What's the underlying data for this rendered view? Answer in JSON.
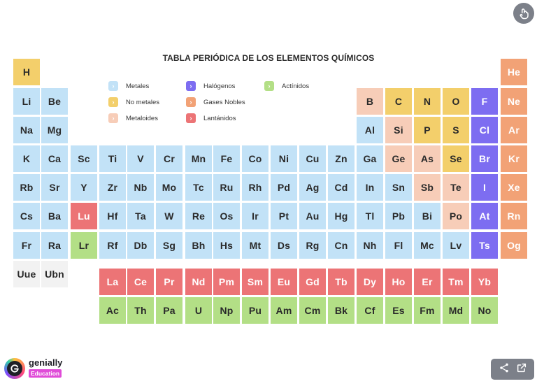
{
  "title": "TABLA PERIÓDICA DE LOS ELEMENTOS QUÍMICOS",
  "colors": {
    "Metales": "#c2e2f7",
    "No metales": "#f3cf6b",
    "Metaloides": "#f7cdb8",
    "Halógenos": "#7d6df1",
    "Gases Nobles": "#f2a276",
    "Lantánidos": "#ec7476",
    "Actínidos": "#b3df86",
    "unknown": "#f2f2f2"
  },
  "legend": [
    {
      "label": "Metales",
      "key": "Metales",
      "marker": "›"
    },
    {
      "label": "No metales",
      "key": "No metales",
      "marker": "›"
    },
    {
      "label": "Metaloides",
      "key": "Metaloides",
      "marker": "›"
    },
    {
      "label": "Halógenos",
      "key": "Halógenos",
      "marker": "›"
    },
    {
      "label": "Gases Nobles",
      "key": "Gases Nobles",
      "marker": "›"
    },
    {
      "label": "Lantánidos",
      "key": "Lantánidos",
      "marker": "›"
    },
    {
      "label": "Actínidos",
      "key": "Actínidos",
      "marker": "›"
    }
  ],
  "elements": [
    {
      "s": "H",
      "row": 1,
      "col": 1,
      "cat": "No metales"
    },
    {
      "s": "He",
      "row": 1,
      "col": 18,
      "cat": "Gases Nobles"
    },
    {
      "s": "Li",
      "row": 2,
      "col": 1,
      "cat": "Metales"
    },
    {
      "s": "Be",
      "row": 2,
      "col": 2,
      "cat": "Metales"
    },
    {
      "s": "B",
      "row": 2,
      "col": 13,
      "cat": "Metaloides"
    },
    {
      "s": "C",
      "row": 2,
      "col": 14,
      "cat": "No metales"
    },
    {
      "s": "N",
      "row": 2,
      "col": 15,
      "cat": "No metales"
    },
    {
      "s": "O",
      "row": 2,
      "col": 16,
      "cat": "No metales"
    },
    {
      "s": "F",
      "row": 2,
      "col": 17,
      "cat": "Halógenos"
    },
    {
      "s": "Ne",
      "row": 2,
      "col": 18,
      "cat": "Gases Nobles"
    },
    {
      "s": "Na",
      "row": 3,
      "col": 1,
      "cat": "Metales"
    },
    {
      "s": "Mg",
      "row": 3,
      "col": 2,
      "cat": "Metales"
    },
    {
      "s": "Al",
      "row": 3,
      "col": 13,
      "cat": "Metales"
    },
    {
      "s": "Si",
      "row": 3,
      "col": 14,
      "cat": "Metaloides"
    },
    {
      "s": "P",
      "row": 3,
      "col": 15,
      "cat": "No metales"
    },
    {
      "s": "S",
      "row": 3,
      "col": 16,
      "cat": "No metales"
    },
    {
      "s": "Cl",
      "row": 3,
      "col": 17,
      "cat": "Halógenos"
    },
    {
      "s": "Ar",
      "row": 3,
      "col": 18,
      "cat": "Gases Nobles"
    },
    {
      "s": "K",
      "row": 4,
      "col": 1,
      "cat": "Metales"
    },
    {
      "s": "Ca",
      "row": 4,
      "col": 2,
      "cat": "Metales"
    },
    {
      "s": "Sc",
      "row": 4,
      "col": 3,
      "cat": "Metales"
    },
    {
      "s": "Ti",
      "row": 4,
      "col": 4,
      "cat": "Metales"
    },
    {
      "s": "V",
      "row": 4,
      "col": 5,
      "cat": "Metales"
    },
    {
      "s": "Cr",
      "row": 4,
      "col": 6,
      "cat": "Metales"
    },
    {
      "s": "Mn",
      "row": 4,
      "col": 7,
      "cat": "Metales"
    },
    {
      "s": "Fe",
      "row": 4,
      "col": 8,
      "cat": "Metales"
    },
    {
      "s": "Co",
      "row": 4,
      "col": 9,
      "cat": "Metales"
    },
    {
      "s": "Ni",
      "row": 4,
      "col": 10,
      "cat": "Metales"
    },
    {
      "s": "Cu",
      "row": 4,
      "col": 11,
      "cat": "Metales"
    },
    {
      "s": "Zn",
      "row": 4,
      "col": 12,
      "cat": "Metales"
    },
    {
      "s": "Ga",
      "row": 4,
      "col": 13,
      "cat": "Metales"
    },
    {
      "s": "Ge",
      "row": 4,
      "col": 14,
      "cat": "Metaloides"
    },
    {
      "s": "As",
      "row": 4,
      "col": 15,
      "cat": "Metaloides"
    },
    {
      "s": "Se",
      "row": 4,
      "col": 16,
      "cat": "No metales"
    },
    {
      "s": "Br",
      "row": 4,
      "col": 17,
      "cat": "Halógenos"
    },
    {
      "s": "Kr",
      "row": 4,
      "col": 18,
      "cat": "Gases Nobles"
    },
    {
      "s": "Rb",
      "row": 5,
      "col": 1,
      "cat": "Metales"
    },
    {
      "s": "Sr",
      "row": 5,
      "col": 2,
      "cat": "Metales"
    },
    {
      "s": "Y",
      "row": 5,
      "col": 3,
      "cat": "Metales"
    },
    {
      "s": "Zr",
      "row": 5,
      "col": 4,
      "cat": "Metales"
    },
    {
      "s": "Nb",
      "row": 5,
      "col": 5,
      "cat": "Metales"
    },
    {
      "s": "Mo",
      "row": 5,
      "col": 6,
      "cat": "Metales"
    },
    {
      "s": "Tc",
      "row": 5,
      "col": 7,
      "cat": "Metales"
    },
    {
      "s": "Ru",
      "row": 5,
      "col": 8,
      "cat": "Metales"
    },
    {
      "s": "Rh",
      "row": 5,
      "col": 9,
      "cat": "Metales"
    },
    {
      "s": "Pd",
      "row": 5,
      "col": 10,
      "cat": "Metales"
    },
    {
      "s": "Ag",
      "row": 5,
      "col": 11,
      "cat": "Metales"
    },
    {
      "s": "Cd",
      "row": 5,
      "col": 12,
      "cat": "Metales"
    },
    {
      "s": "In",
      "row": 5,
      "col": 13,
      "cat": "Metales"
    },
    {
      "s": "Sn",
      "row": 5,
      "col": 14,
      "cat": "Metales"
    },
    {
      "s": "Sb",
      "row": 5,
      "col": 15,
      "cat": "Metaloides"
    },
    {
      "s": "Te",
      "row": 5,
      "col": 16,
      "cat": "Metaloides"
    },
    {
      "s": "I",
      "row": 5,
      "col": 17,
      "cat": "Halógenos"
    },
    {
      "s": "Xe",
      "row": 5,
      "col": 18,
      "cat": "Gases Nobles"
    },
    {
      "s": "Cs",
      "row": 6,
      "col": 1,
      "cat": "Metales"
    },
    {
      "s": "Ba",
      "row": 6,
      "col": 2,
      "cat": "Metales"
    },
    {
      "s": "Lu",
      "row": 6,
      "col": 3,
      "cat": "Lantánidos"
    },
    {
      "s": "Hf",
      "row": 6,
      "col": 4,
      "cat": "Metales"
    },
    {
      "s": "Ta",
      "row": 6,
      "col": 5,
      "cat": "Metales"
    },
    {
      "s": "W",
      "row": 6,
      "col": 6,
      "cat": "Metales"
    },
    {
      "s": "Re",
      "row": 6,
      "col": 7,
      "cat": "Metales"
    },
    {
      "s": "Os",
      "row": 6,
      "col": 8,
      "cat": "Metales"
    },
    {
      "s": "Ir",
      "row": 6,
      "col": 9,
      "cat": "Metales"
    },
    {
      "s": "Pt",
      "row": 6,
      "col": 10,
      "cat": "Metales"
    },
    {
      "s": "Au",
      "row": 6,
      "col": 11,
      "cat": "Metales"
    },
    {
      "s": "Hg",
      "row": 6,
      "col": 12,
      "cat": "Metales"
    },
    {
      "s": "Tl",
      "row": 6,
      "col": 13,
      "cat": "Metales"
    },
    {
      "s": "Pb",
      "row": 6,
      "col": 14,
      "cat": "Metales"
    },
    {
      "s": "Bi",
      "row": 6,
      "col": 15,
      "cat": "Metales"
    },
    {
      "s": "Po",
      "row": 6,
      "col": 16,
      "cat": "Metaloides"
    },
    {
      "s": "At",
      "row": 6,
      "col": 17,
      "cat": "Halógenos"
    },
    {
      "s": "Rn",
      "row": 6,
      "col": 18,
      "cat": "Gases Nobles"
    },
    {
      "s": "Fr",
      "row": 7,
      "col": 1,
      "cat": "Metales"
    },
    {
      "s": "Ra",
      "row": 7,
      "col": 2,
      "cat": "Metales"
    },
    {
      "s": "Lr",
      "row": 7,
      "col": 3,
      "cat": "Actínidos"
    },
    {
      "s": "Rf",
      "row": 7,
      "col": 4,
      "cat": "Metales"
    },
    {
      "s": "Db",
      "row": 7,
      "col": 5,
      "cat": "Metales"
    },
    {
      "s": "Sg",
      "row": 7,
      "col": 6,
      "cat": "Metales"
    },
    {
      "s": "Bh",
      "row": 7,
      "col": 7,
      "cat": "Metales"
    },
    {
      "s": "Hs",
      "row": 7,
      "col": 8,
      "cat": "Metales"
    },
    {
      "s": "Mt",
      "row": 7,
      "col": 9,
      "cat": "Metales"
    },
    {
      "s": "Ds",
      "row": 7,
      "col": 10,
      "cat": "Metales"
    },
    {
      "s": "Rg",
      "row": 7,
      "col": 11,
      "cat": "Metales"
    },
    {
      "s": "Cn",
      "row": 7,
      "col": 12,
      "cat": "Metales"
    },
    {
      "s": "Nh",
      "row": 7,
      "col": 13,
      "cat": "Metales"
    },
    {
      "s": "Fl",
      "row": 7,
      "col": 14,
      "cat": "Metales"
    },
    {
      "s": "Mc",
      "row": 7,
      "col": 15,
      "cat": "Metales"
    },
    {
      "s": "Lv",
      "row": 7,
      "col": 16,
      "cat": "Metales"
    },
    {
      "s": "Ts",
      "row": 7,
      "col": 17,
      "cat": "Halógenos"
    },
    {
      "s": "Og",
      "row": 7,
      "col": 18,
      "cat": "Gases Nobles"
    },
    {
      "s": "Uue",
      "row": 8,
      "col": 1,
      "cat": "unknown"
    },
    {
      "s": "Ubn",
      "row": 8,
      "col": 2,
      "cat": "unknown"
    },
    {
      "s": "La",
      "row": 9,
      "col": 4,
      "cat": "Lantánidos"
    },
    {
      "s": "Ce",
      "row": 9,
      "col": 5,
      "cat": "Lantánidos"
    },
    {
      "s": "Pr",
      "row": 9,
      "col": 6,
      "cat": "Lantánidos"
    },
    {
      "s": "Nd",
      "row": 9,
      "col": 7,
      "cat": "Lantánidos"
    },
    {
      "s": "Pm",
      "row": 9,
      "col": 8,
      "cat": "Lantánidos"
    },
    {
      "s": "Sm",
      "row": 9,
      "col": 9,
      "cat": "Lantánidos"
    },
    {
      "s": "Eu",
      "row": 9,
      "col": 10,
      "cat": "Lantánidos"
    },
    {
      "s": "Gd",
      "row": 9,
      "col": 11,
      "cat": "Lantánidos"
    },
    {
      "s": "Tb",
      "row": 9,
      "col": 12,
      "cat": "Lantánidos"
    },
    {
      "s": "Dy",
      "row": 9,
      "col": 13,
      "cat": "Lantánidos"
    },
    {
      "s": "Ho",
      "row": 9,
      "col": 14,
      "cat": "Lantánidos"
    },
    {
      "s": "Er",
      "row": 9,
      "col": 15,
      "cat": "Lantánidos"
    },
    {
      "s": "Tm",
      "row": 9,
      "col": 16,
      "cat": "Lantánidos"
    },
    {
      "s": "Yb",
      "row": 9,
      "col": 17,
      "cat": "Lantánidos"
    },
    {
      "s": "Ac",
      "row": 10,
      "col": 4,
      "cat": "Actínidos"
    },
    {
      "s": "Th",
      "row": 10,
      "col": 5,
      "cat": "Actínidos"
    },
    {
      "s": "Pa",
      "row": 10,
      "col": 6,
      "cat": "Actínidos"
    },
    {
      "s": "U",
      "row": 10,
      "col": 7,
      "cat": "Actínidos"
    },
    {
      "s": "Np",
      "row": 10,
      "col": 8,
      "cat": "Actínidos"
    },
    {
      "s": "Pu",
      "row": 10,
      "col": 9,
      "cat": "Actínidos"
    },
    {
      "s": "Am",
      "row": 10,
      "col": 10,
      "cat": "Actínidos"
    },
    {
      "s": "Cm",
      "row": 10,
      "col": 11,
      "cat": "Actínidos"
    },
    {
      "s": "Bk",
      "row": 10,
      "col": 12,
      "cat": "Actínidos"
    },
    {
      "s": "Cf",
      "row": 10,
      "col": 13,
      "cat": "Actínidos"
    },
    {
      "s": "Es",
      "row": 10,
      "col": 14,
      "cat": "Actínidos"
    },
    {
      "s": "Fm",
      "row": 10,
      "col": 15,
      "cat": "Actínidos"
    },
    {
      "s": "Md",
      "row": 10,
      "col": 16,
      "cat": "Actínidos"
    },
    {
      "s": "No",
      "row": 10,
      "col": 17,
      "cat": "Actínidos"
    }
  ],
  "top_button": {
    "icon": "touch-interaction-icon"
  },
  "branding": {
    "name": "genially",
    "badge": "Education"
  },
  "share_bar": {
    "icons": [
      "share-icon",
      "external-link-icon"
    ]
  }
}
